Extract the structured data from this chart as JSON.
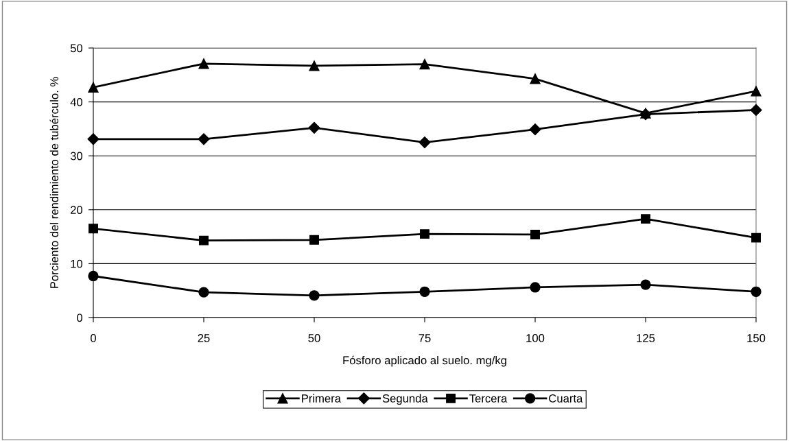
{
  "chart_data": {
    "type": "line",
    "xlabel": "Fósforo aplicado al suelo. mg/kg",
    "ylabel": "Porciento del rendimiento de tubérculo. %",
    "x": [
      0,
      25,
      50,
      75,
      100,
      125,
      150
    ],
    "xlim": [
      0,
      150
    ],
    "xticks": [
      0,
      25,
      50,
      75,
      100,
      125,
      150
    ],
    "ylim": [
      0,
      50
    ],
    "yticks": [
      0,
      10,
      20,
      30,
      40,
      50
    ],
    "grid": "y",
    "legend": "bottom",
    "line_style": "solid",
    "series": [
      {
        "name": "Primera",
        "color": "#000000",
        "marker": "triangle",
        "values": [
          42.7,
          47.1,
          46.7,
          47.0,
          44.3,
          37.9,
          42.0
        ]
      },
      {
        "name": "Segunda",
        "color": "#000000",
        "marker": "diamond",
        "values": [
          33.1,
          33.1,
          35.2,
          32.5,
          34.9,
          37.7,
          38.5
        ]
      },
      {
        "name": "Tercera",
        "color": "#000000",
        "marker": "square",
        "values": [
          16.5,
          14.3,
          14.4,
          15.5,
          15.4,
          18.3,
          14.8
        ]
      },
      {
        "name": "Cuarta",
        "color": "#000000",
        "marker": "circle",
        "values": [
          7.7,
          4.7,
          4.1,
          4.8,
          5.6,
          6.1,
          4.8
        ]
      }
    ]
  }
}
